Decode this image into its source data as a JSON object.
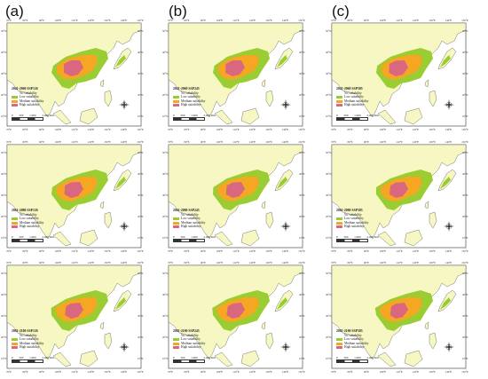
{
  "columns": [
    {
      "label": "(a)",
      "panels": [
        {
          "title": "2041-2060 SSP126"
        },
        {
          "title": "2061-2080 SSP126"
        },
        {
          "title": "2081-2100 SSP126"
        }
      ]
    },
    {
      "label": "(b)",
      "panels": [
        {
          "title": "2041-2060 SSP245"
        },
        {
          "title": "2061-2080 SSP245"
        },
        {
          "title": "2081-2100 SSP245"
        }
      ]
    },
    {
      "label": "(c)",
      "panels": [
        {
          "title": "2041-2060 SSP585"
        },
        {
          "title": "2061-2080 SSP585"
        },
        {
          "title": "2081-2100 SSP585"
        }
      ]
    }
  ],
  "legend": {
    "items": [
      {
        "label": "No suitability",
        "color": "#f7f7c4"
      },
      {
        "label": "Low suitability",
        "color": "#9acd32"
      },
      {
        "label": "Medium suitability",
        "color": "#f5a623"
      },
      {
        "label": "High suitability",
        "color": "#d9677f"
      }
    ]
  },
  "scale": {
    "ticks": [
      "0",
      "500",
      "1,000",
      "2,000 Km"
    ]
  },
  "grid": {
    "lon_labels": [
      "70°E",
      "80°E",
      "90°E",
      "100°E",
      "110°E",
      "120°E",
      "130°E",
      "140°E",
      "150°E"
    ],
    "lat_labels": [
      "50°N",
      "40°N",
      "30°N",
      "20°N",
      "10°N"
    ]
  },
  "colors": {
    "land": "#f7f7c4",
    "sea": "#ffffff",
    "border": "#555555",
    "low": "#9acd32",
    "medium": "#f5a623",
    "high": "#d9677f"
  }
}
